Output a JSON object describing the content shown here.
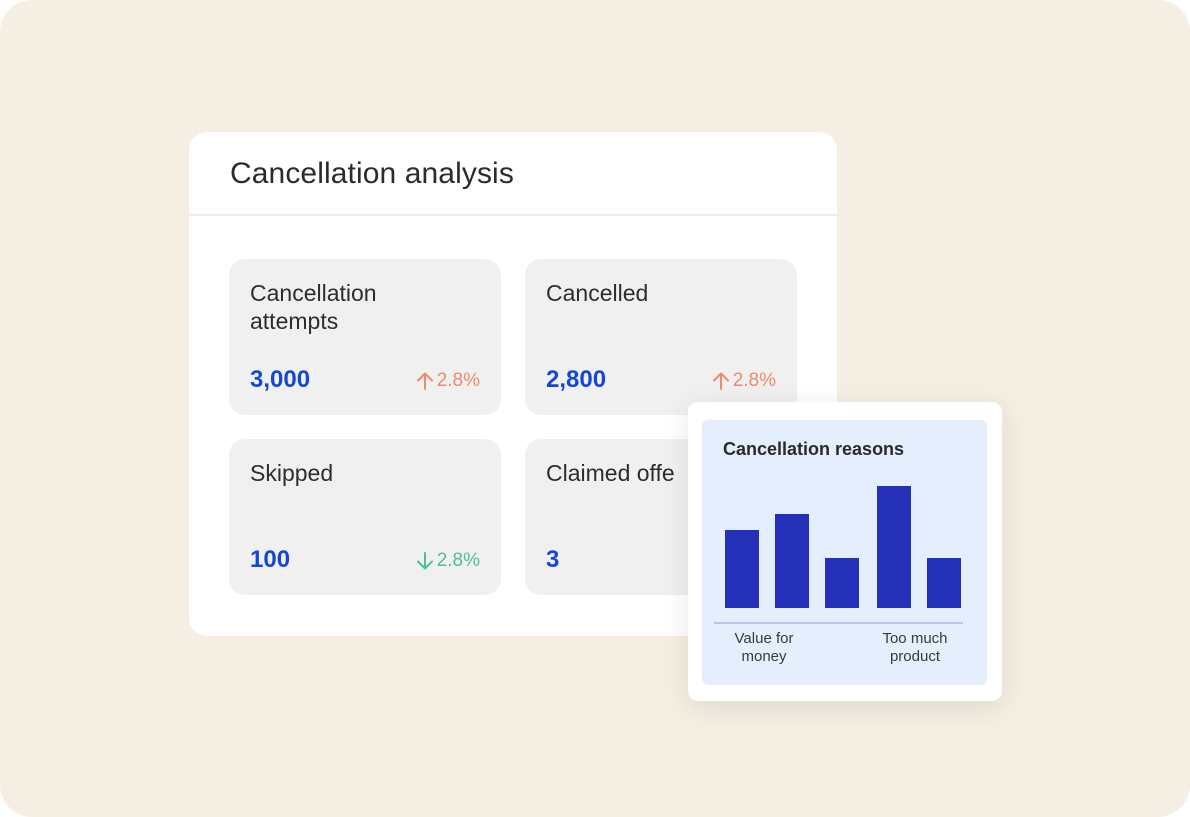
{
  "panel": {
    "title": "Cancellation analysis"
  },
  "cards": [
    {
      "label": "Cancellation\nattempts",
      "value": "3,000",
      "change": "2.8%",
      "direction": "up"
    },
    {
      "label": "Cancelled",
      "value": "2,800",
      "change": "2.8%",
      "direction": "up"
    },
    {
      "label": "Skipped",
      "value": "100",
      "change": "2.8%",
      "direction": "down"
    },
    {
      "label": "Claimed offe",
      "value": "3",
      "change": "",
      "direction": ""
    }
  ],
  "colors": {
    "background": "#f5efe3",
    "value_blue": "#1547d4",
    "up_orange": "#ee8a6d",
    "down_green": "#4fbf95",
    "bar_color": "#2530b8",
    "popup_bg": "#e5eefd"
  },
  "popup": {
    "title": "Cancellation reasons"
  },
  "chart_data": {
    "type": "bar",
    "title": "Cancellation reasons",
    "categories": [
      "Value for\nmoney",
      "",
      "",
      "Too much\nproduct",
      ""
    ],
    "values": [
      78,
      94,
      50,
      122,
      50
    ],
    "tick_labels": [
      "Value for\nmoney",
      "Too much\nproduct"
    ],
    "xlabel": "",
    "ylabel": "",
    "ylim": [
      0,
      122
    ],
    "grid": false,
    "legend": "none"
  }
}
